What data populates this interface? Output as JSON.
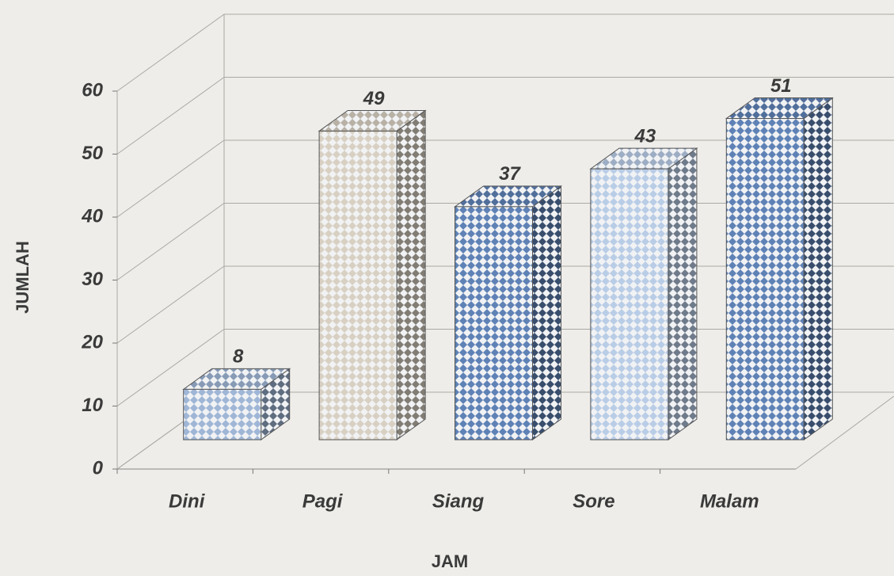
{
  "chart_data": {
    "type": "bar3d",
    "categories": [
      "Dini",
      "Pagi",
      "Siang",
      "Sore",
      "Malam"
    ],
    "values": [
      8,
      49,
      37,
      43,
      51
    ],
    "colors": [
      "#9fb6d6",
      "#d8d0c2",
      "#5f82b6",
      "#b9cde6",
      "#5f82b6"
    ],
    "xlabel": "JAM",
    "ylabel": "JUMLAH",
    "ylim": [
      0,
      60
    ],
    "yticks": [
      0,
      10,
      20,
      30,
      40,
      50,
      60
    ],
    "grid": true
  }
}
